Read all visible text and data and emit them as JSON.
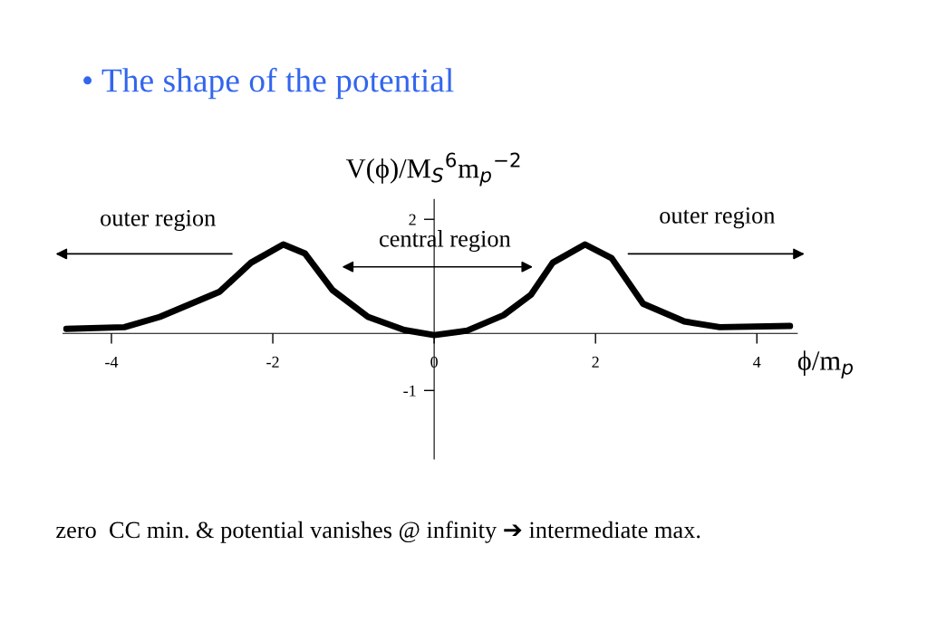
{
  "chart_data": {
    "type": "line",
    "title": "• The shape of the potential",
    "xlabel": "ϕ/m$_{p}$",
    "ylabel": "V(ϕ)/M$_{S}$$^{6}$m$_{p}$$^{−2}$",
    "x": [
      -4.56,
      -3.84,
      -3.4,
      -2.66,
      -2.27,
      -1.87,
      -1.6,
      -1.26,
      -0.82,
      -0.37,
      0,
      0.41,
      0.86,
      1.2,
      1.47,
      1.87,
      2.2,
      2.59,
      3.1,
      3.54,
      4.41
    ],
    "series": [
      {
        "color": "#000000",
        "values": [
          0.08,
          0.11,
          0.29,
          0.73,
          1.24,
          1.56,
          1.4,
          0.76,
          0.29,
          0.06,
          -0.03,
          0.05,
          0.32,
          0.68,
          1.24,
          1.56,
          1.32,
          0.52,
          0.21,
          0.11,
          0.13
        ]
      }
    ],
    "xlim": [
      -4.6,
      4.5
    ],
    "ylim": [
      -2.2,
      2.35
    ],
    "xticks": [
      -4,
      -2,
      0,
      2,
      4
    ],
    "yticks": [
      -1,
      2
    ],
    "annotations": [
      "outer region",
      "central region",
      "outer region",
      "zero  CC min. & potential vanishes @ infinity ➔ intermediate max."
    ],
    "grid": false,
    "legend": false,
    "marker": "none",
    "line_style": "solid"
  }
}
